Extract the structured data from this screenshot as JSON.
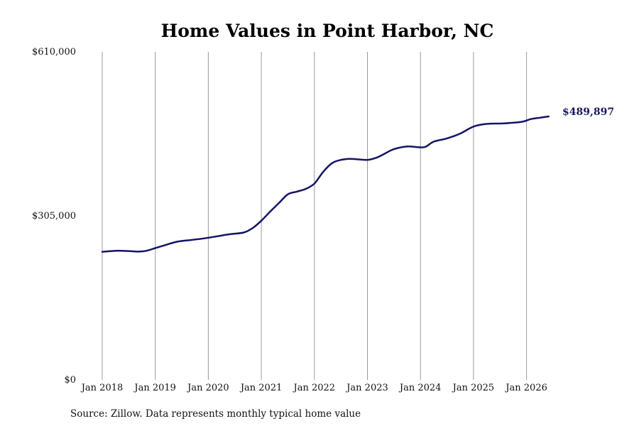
{
  "chart_data": {
    "type": "line",
    "title": "Home Values in Point Harbor, NC",
    "xlabel": "",
    "ylabel": "",
    "source_note": "Source: Zillow. Data represents monthly typical home value",
    "ylim": [
      0,
      610000
    ],
    "y_ticks": [
      {
        "value": 0,
        "label": "$0"
      },
      {
        "value": 305000,
        "label": "$305,000"
      },
      {
        "value": 610000,
        "label": "$610,000"
      }
    ],
    "x_ticks": [
      {
        "value": "2018-01",
        "label": "Jan 2018"
      },
      {
        "value": "2019-01",
        "label": "Jan 2019"
      },
      {
        "value": "2020-01",
        "label": "Jan 2020"
      },
      {
        "value": "2021-01",
        "label": "Jan 2021"
      },
      {
        "value": "2022-01",
        "label": "Jan 2022"
      },
      {
        "value": "2023-01",
        "label": "Jan 2023"
      },
      {
        "value": "2024-01",
        "label": "Jan 2024"
      },
      {
        "value": "2025-01",
        "label": "Jan 2025"
      },
      {
        "value": "2026-01",
        "label": "Jan 2026"
      }
    ],
    "x_range": [
      "2018-01",
      "2026-06"
    ],
    "grid": "vertical",
    "end_label": "$489,897",
    "series": [
      {
        "color": "#141466",
        "points": [
          [
            "2018-01",
            238000
          ],
          [
            "2018-04",
            240000
          ],
          [
            "2018-07",
            239500
          ],
          [
            "2018-09",
            238500
          ],
          [
            "2018-11",
            240000
          ],
          [
            "2019-01",
            245000
          ],
          [
            "2019-03",
            250000
          ],
          [
            "2019-06",
            257000
          ],
          [
            "2019-09",
            260000
          ],
          [
            "2019-12",
            263000
          ],
          [
            "2020-03",
            267000
          ],
          [
            "2020-06",
            271000
          ],
          [
            "2020-09",
            274000
          ],
          [
            "2020-11",
            282000
          ],
          [
            "2021-01",
            296000
          ],
          [
            "2021-03",
            313000
          ],
          [
            "2021-05",
            329000
          ],
          [
            "2021-07",
            345000
          ],
          [
            "2021-09",
            350000
          ],
          [
            "2021-11",
            355000
          ],
          [
            "2022-01",
            365000
          ],
          [
            "2022-03",
            387000
          ],
          [
            "2022-05",
            403000
          ],
          [
            "2022-07",
            409000
          ],
          [
            "2022-09",
            411000
          ],
          [
            "2022-11",
            410000
          ],
          [
            "2023-01",
            409000
          ],
          [
            "2023-03",
            413000
          ],
          [
            "2023-05",
            421000
          ],
          [
            "2023-07",
            429000
          ],
          [
            "2023-10",
            434000
          ],
          [
            "2023-12",
            433000
          ],
          [
            "2024-02",
            433000
          ],
          [
            "2024-04",
            443000
          ],
          [
            "2024-07",
            449000
          ],
          [
            "2024-10",
            458000
          ],
          [
            "2025-01",
            471000
          ],
          [
            "2025-04",
            476000
          ],
          [
            "2025-08",
            477000
          ],
          [
            "2025-12",
            480000
          ],
          [
            "2026-02",
            485000
          ],
          [
            "2026-04",
            487500
          ],
          [
            "2026-06",
            489897
          ]
        ]
      }
    ]
  }
}
